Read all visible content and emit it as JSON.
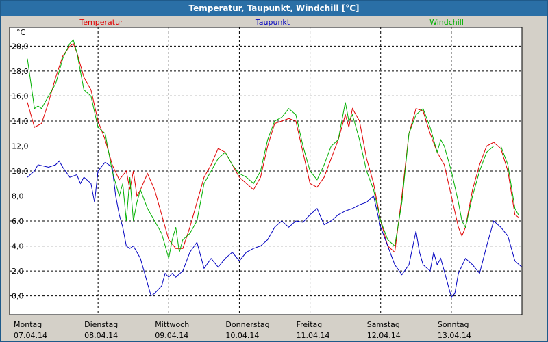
{
  "window": {
    "title": "Temperatur, Taupunkt, Windchill [°C]"
  },
  "colors": {
    "temperatur": "#e00000",
    "taupunkt": "#0000c0",
    "windchill": "#00b000",
    "grid": "#000000",
    "background": "#ffffff",
    "titlebar": "#2a6fa6"
  },
  "chart_data": {
    "type": "line",
    "title": "Temperatur, Taupunkt, Windchill [°C]",
    "ylabel": "°C",
    "ylim": [
      -1.5,
      21.5
    ],
    "yticks": [
      0,
      2,
      4,
      6,
      8,
      10,
      12,
      14,
      16,
      18,
      20
    ],
    "ytick_labels": [
      "0,0",
      "2,0",
      "4,0",
      "6,0",
      "8,0",
      "10,0",
      "12,0",
      "14,0",
      "16,0",
      "18,0",
      "20,0"
    ],
    "xlim": [
      0,
      7
    ],
    "x_days": [
      {
        "x": 0,
        "day": "Montag",
        "date": "07.04.14"
      },
      {
        "x": 1,
        "day": "Dienstag",
        "date": "08.04.14"
      },
      {
        "x": 2,
        "day": "Mittwoch",
        "date": "09.04.14"
      },
      {
        "x": 3,
        "day": "Donnerstag",
        "date": "10.04.14"
      },
      {
        "x": 4,
        "day": "Freitag",
        "date": "11.04.14"
      },
      {
        "x": 5,
        "day": "Samstag",
        "date": "12.04.14"
      },
      {
        "x": 6,
        "day": "Sonntag",
        "date": "13.04.14"
      }
    ],
    "legend": [
      "Temperatur",
      "Taupunkt",
      "Windchill"
    ],
    "series": [
      {
        "name": "Temperatur",
        "color": "#e00000",
        "points": [
          [
            0.0,
            15.5
          ],
          [
            0.1,
            13.5
          ],
          [
            0.2,
            13.8
          ],
          [
            0.3,
            15.5
          ],
          [
            0.4,
            17.5
          ],
          [
            0.5,
            19.2
          ],
          [
            0.6,
            20.0
          ],
          [
            0.65,
            20.2
          ],
          [
            0.7,
            19.5
          ],
          [
            0.8,
            17.5
          ],
          [
            0.9,
            16.5
          ],
          [
            1.0,
            14.0
          ],
          [
            1.1,
            12.5
          ],
          [
            1.2,
            10.5
          ],
          [
            1.3,
            9.3
          ],
          [
            1.4,
            10.0
          ],
          [
            1.45,
            8.5
          ],
          [
            1.5,
            10.0
          ],
          [
            1.55,
            8.0
          ],
          [
            1.6,
            8.5
          ],
          [
            1.7,
            9.8
          ],
          [
            1.8,
            8.5
          ],
          [
            1.9,
            6.5
          ],
          [
            2.0,
            4.5
          ],
          [
            2.1,
            3.8
          ],
          [
            2.2,
            3.8
          ],
          [
            2.3,
            5.5
          ],
          [
            2.4,
            7.5
          ],
          [
            2.5,
            9.5
          ],
          [
            2.6,
            10.5
          ],
          [
            2.7,
            11.8
          ],
          [
            2.8,
            11.5
          ],
          [
            2.9,
            10.5
          ],
          [
            3.0,
            9.5
          ],
          [
            3.1,
            9.0
          ],
          [
            3.2,
            8.5
          ],
          [
            3.3,
            9.5
          ],
          [
            3.4,
            12.0
          ],
          [
            3.5,
            13.8
          ],
          [
            3.6,
            14.0
          ],
          [
            3.7,
            14.2
          ],
          [
            3.8,
            14.0
          ],
          [
            3.9,
            11.5
          ],
          [
            4.0,
            9.0
          ],
          [
            4.1,
            8.7
          ],
          [
            4.2,
            9.5
          ],
          [
            4.3,
            11.0
          ],
          [
            4.4,
            12.5
          ],
          [
            4.5,
            14.5
          ],
          [
            4.55,
            13.5
          ],
          [
            4.6,
            15.0
          ],
          [
            4.7,
            14.0
          ],
          [
            4.8,
            11.0
          ],
          [
            4.9,
            9.0
          ],
          [
            5.0,
            6.0
          ],
          [
            5.1,
            4.0
          ],
          [
            5.2,
            3.5
          ],
          [
            5.3,
            8.0
          ],
          [
            5.4,
            13.0
          ],
          [
            5.5,
            15.0
          ],
          [
            5.6,
            14.8
          ],
          [
            5.7,
            13.0
          ],
          [
            5.8,
            11.5
          ],
          [
            5.9,
            10.5
          ],
          [
            6.0,
            8.0
          ],
          [
            6.1,
            5.5
          ],
          [
            6.15,
            4.8
          ],
          [
            6.2,
            5.5
          ],
          [
            6.3,
            8.5
          ],
          [
            6.4,
            10.5
          ],
          [
            6.5,
            12.0
          ],
          [
            6.6,
            12.3
          ],
          [
            6.7,
            11.8
          ],
          [
            6.8,
            10.0
          ],
          [
            6.9,
            6.5
          ],
          [
            6.95,
            6.3
          ]
        ]
      },
      {
        "name": "Taupunkt",
        "color": "#0000c0",
        "points": [
          [
            0.0,
            9.5
          ],
          [
            0.1,
            10.0
          ],
          [
            0.15,
            10.5
          ],
          [
            0.3,
            10.3
          ],
          [
            0.4,
            10.5
          ],
          [
            0.45,
            10.8
          ],
          [
            0.5,
            10.3
          ],
          [
            0.6,
            9.5
          ],
          [
            0.7,
            9.7
          ],
          [
            0.75,
            9.0
          ],
          [
            0.8,
            9.5
          ],
          [
            0.9,
            9.0
          ],
          [
            0.95,
            7.5
          ],
          [
            1.0,
            10.0
          ],
          [
            1.1,
            10.7
          ],
          [
            1.2,
            10.3
          ],
          [
            1.25,
            8.0
          ],
          [
            1.3,
            6.5
          ],
          [
            1.35,
            5.5
          ],
          [
            1.4,
            4.0
          ],
          [
            1.45,
            3.8
          ],
          [
            1.5,
            4.0
          ],
          [
            1.55,
            3.5
          ],
          [
            1.6,
            3.0
          ],
          [
            1.7,
            1.0
          ],
          [
            1.75,
            0.0
          ],
          [
            1.8,
            0.2
          ],
          [
            1.9,
            0.8
          ],
          [
            1.95,
            1.8
          ],
          [
            2.0,
            1.5
          ],
          [
            2.05,
            1.8
          ],
          [
            2.1,
            1.5
          ],
          [
            2.2,
            2.0
          ],
          [
            2.3,
            3.5
          ],
          [
            2.4,
            4.3
          ],
          [
            2.5,
            2.2
          ],
          [
            2.6,
            3.0
          ],
          [
            2.7,
            2.3
          ],
          [
            2.8,
            3.0
          ],
          [
            2.9,
            3.5
          ],
          [
            3.0,
            2.8
          ],
          [
            3.1,
            3.5
          ],
          [
            3.2,
            3.8
          ],
          [
            3.3,
            4.0
          ],
          [
            3.4,
            4.5
          ],
          [
            3.5,
            5.5
          ],
          [
            3.6,
            6.0
          ],
          [
            3.7,
            5.5
          ],
          [
            3.8,
            6.0
          ],
          [
            3.9,
            5.9
          ],
          [
            4.0,
            6.5
          ],
          [
            4.1,
            7.0
          ],
          [
            4.2,
            5.7
          ],
          [
            4.3,
            6.0
          ],
          [
            4.4,
            6.5
          ],
          [
            4.5,
            6.8
          ],
          [
            4.6,
            7.0
          ],
          [
            4.7,
            7.3
          ],
          [
            4.8,
            7.5
          ],
          [
            4.9,
            8.0
          ],
          [
            5.0,
            5.5
          ],
          [
            5.1,
            4.0
          ],
          [
            5.2,
            2.5
          ],
          [
            5.3,
            1.7
          ],
          [
            5.4,
            2.5
          ],
          [
            5.5,
            5.2
          ],
          [
            5.55,
            3.5
          ],
          [
            5.6,
            2.5
          ],
          [
            5.7,
            2.0
          ],
          [
            5.75,
            3.5
          ],
          [
            5.8,
            2.5
          ],
          [
            5.85,
            3.0
          ],
          [
            5.9,
            2.0
          ],
          [
            6.0,
            -0.1
          ],
          [
            6.05,
            0.2
          ],
          [
            6.1,
            1.8
          ],
          [
            6.2,
            3.0
          ],
          [
            6.3,
            2.5
          ],
          [
            6.4,
            1.8
          ],
          [
            6.5,
            4.0
          ],
          [
            6.6,
            6.0
          ],
          [
            6.7,
            5.5
          ],
          [
            6.8,
            4.8
          ],
          [
            6.9,
            2.8
          ],
          [
            7.0,
            2.3
          ]
        ]
      },
      {
        "name": "Windchill",
        "color": "#00b000",
        "points": [
          [
            0.0,
            19.0
          ],
          [
            0.05,
            17.0
          ],
          [
            0.1,
            15.0
          ],
          [
            0.15,
            15.2
          ],
          [
            0.2,
            15.0
          ],
          [
            0.3,
            16.0
          ],
          [
            0.4,
            17.0
          ],
          [
            0.5,
            19.0
          ],
          [
            0.6,
            20.2
          ],
          [
            0.65,
            20.5
          ],
          [
            0.7,
            19.5
          ],
          [
            0.8,
            16.5
          ],
          [
            0.9,
            16.0
          ],
          [
            1.0,
            13.5
          ],
          [
            1.1,
            13.0
          ],
          [
            1.2,
            10.0
          ],
          [
            1.3,
            8.0
          ],
          [
            1.35,
            9.0
          ],
          [
            1.4,
            6.0
          ],
          [
            1.45,
            9.5
          ],
          [
            1.5,
            6.0
          ],
          [
            1.55,
            7.5
          ],
          [
            1.6,
            8.5
          ],
          [
            1.7,
            7.0
          ],
          [
            1.8,
            6.0
          ],
          [
            1.9,
            5.0
          ],
          [
            2.0,
            3.0
          ],
          [
            2.05,
            4.5
          ],
          [
            2.1,
            5.5
          ],
          [
            2.15,
            3.5
          ],
          [
            2.2,
            4.5
          ],
          [
            2.3,
            5.0
          ],
          [
            2.4,
            6.0
          ],
          [
            2.5,
            9.0
          ],
          [
            2.6,
            10.0
          ],
          [
            2.7,
            11.0
          ],
          [
            2.8,
            11.5
          ],
          [
            2.9,
            10.5
          ],
          [
            3.0,
            9.8
          ],
          [
            3.1,
            9.5
          ],
          [
            3.2,
            9.0
          ],
          [
            3.3,
            10.0
          ],
          [
            3.4,
            12.5
          ],
          [
            3.5,
            14.0
          ],
          [
            3.6,
            14.3
          ],
          [
            3.7,
            15.0
          ],
          [
            3.8,
            14.5
          ],
          [
            3.9,
            12.0
          ],
          [
            4.0,
            10.0
          ],
          [
            4.1,
            9.3
          ],
          [
            4.2,
            10.5
          ],
          [
            4.3,
            12.0
          ],
          [
            4.4,
            12.5
          ],
          [
            4.5,
            15.5
          ],
          [
            4.55,
            14.0
          ],
          [
            4.6,
            14.5
          ],
          [
            4.7,
            12.5
          ],
          [
            4.8,
            10.0
          ],
          [
            4.9,
            8.5
          ],
          [
            5.0,
            6.0
          ],
          [
            5.1,
            4.5
          ],
          [
            5.2,
            4.0
          ],
          [
            5.3,
            7.5
          ],
          [
            5.4,
            13.0
          ],
          [
            5.5,
            14.5
          ],
          [
            5.6,
            15.0
          ],
          [
            5.7,
            13.5
          ],
          [
            5.8,
            11.5
          ],
          [
            5.85,
            12.5
          ],
          [
            5.9,
            12.0
          ],
          [
            6.0,
            10.0
          ],
          [
            6.1,
            7.5
          ],
          [
            6.15,
            6.0
          ],
          [
            6.2,
            5.5
          ],
          [
            6.3,
            8.0
          ],
          [
            6.4,
            10.0
          ],
          [
            6.5,
            11.5
          ],
          [
            6.6,
            12.0
          ],
          [
            6.7,
            12.0
          ],
          [
            6.8,
            10.5
          ],
          [
            6.9,
            7.0
          ],
          [
            6.95,
            6.5
          ]
        ]
      }
    ]
  }
}
